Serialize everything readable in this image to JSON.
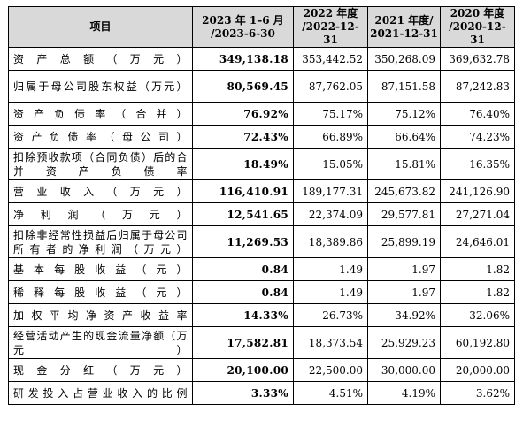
{
  "table": {
    "headers": [
      "项目",
      "2023 年 1–6 月 /2023-6-30",
      "2022 年度 /2022-12-31",
      "2021 年度/ 2021-12-31",
      "2020 年度 /2020-12-31"
    ],
    "rows": [
      {
        "label": "资产总额（万元）",
        "values": [
          "349,138.18",
          "353,442.52",
          "350,268.09",
          "369,632.78"
        ]
      },
      {
        "label": "归属于母公司股东权益（万元）",
        "values": [
          "80,569.45",
          "87,762.05",
          "87,151.58",
          "87,242.83"
        ]
      },
      {
        "label": "资产负债率（合并）",
        "values": [
          "76.92%",
          "75.17%",
          "75.12%",
          "76.40%"
        ]
      },
      {
        "label": "资产负债率（母公司）",
        "values": [
          "72.43%",
          "66.89%",
          "66.64%",
          "74.23%"
        ]
      },
      {
        "label": "扣除预收款项（合同负债）后的合并资产负债率",
        "values": [
          "18.49%",
          "15.05%",
          "15.81%",
          "16.35%"
        ]
      },
      {
        "label": "营业收入（万元）",
        "values": [
          "116,410.91",
          "189,177.31",
          "245,673.82",
          "241,126.90"
        ]
      },
      {
        "label": "净利润（万元）",
        "values": [
          "12,541.65",
          "22,374.09",
          "29,577.81",
          "27,271.04"
        ]
      },
      {
        "label": "扣除非经常性损益后归属于母公司所有者的净利润（万元）",
        "values": [
          "11,269.53",
          "18,389.86",
          "25,899.19",
          "24,646.01"
        ]
      },
      {
        "label": "基本每股收益（元）",
        "values": [
          "0.84",
          "1.49",
          "1.97",
          "1.82"
        ]
      },
      {
        "label": "稀释每股收益（元）",
        "values": [
          "0.84",
          "1.49",
          "1.97",
          "1.82"
        ]
      },
      {
        "label": "加权平均净资产收益率",
        "values": [
          "14.33%",
          "26.73%",
          "34.92%",
          "32.06%"
        ]
      },
      {
        "label": "经营活动产生的现金流量净额（万元）",
        "values": [
          "17,582.81",
          "18,373.54",
          "25,929.23",
          "60,192.80"
        ]
      },
      {
        "label": "现金分红（万元）",
        "values": [
          "20,100.00",
          "22,500.00",
          "30,000.00",
          "20,000.00"
        ]
      },
      {
        "label": "研发投入占营业收入的比例",
        "values": [
          "3.33%",
          "4.51%",
          "4.19%",
          "3.62%"
        ]
      }
    ]
  }
}
